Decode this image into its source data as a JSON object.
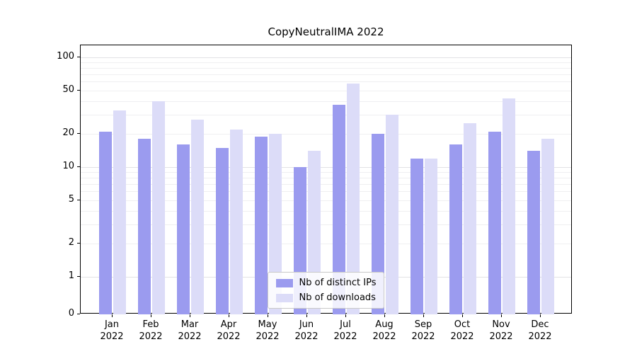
{
  "chart_data": {
    "type": "bar",
    "title": "CopyNeutralIMA 2022",
    "categories": [
      "Jan 2022",
      "Feb 2022",
      "Mar 2022",
      "Apr 2022",
      "May 2022",
      "Jun 2022",
      "Jul 2022",
      "Aug 2022",
      "Sep 2022",
      "Oct 2022",
      "Nov 2022",
      "Dec 2022"
    ],
    "x_tick_line1": [
      "Jan",
      "Feb",
      "Mar",
      "Apr",
      "May",
      "Jun",
      "Jul",
      "Aug",
      "Sep",
      "Oct",
      "Nov",
      "Dec"
    ],
    "x_tick_line2": "2022",
    "series": [
      {
        "name": "Nb of distinct IPs",
        "color": "#9b9bef",
        "values": [
          21,
          18,
          16,
          15,
          19,
          10,
          37,
          20,
          12,
          16,
          21,
          14
        ]
      },
      {
        "name": "Nb of downloads",
        "color": "#dcdcf8",
        "values": [
          33,
          40,
          27,
          22,
          20,
          14,
          58,
          30,
          12,
          25,
          42,
          18
        ]
      }
    ],
    "yscale": "symlog",
    "yticks": [
      0,
      1,
      2,
      5,
      10,
      20,
      50,
      100
    ],
    "ylim": [
      0,
      135
    ],
    "grid": true,
    "grid_minor_values": [
      2,
      3,
      4,
      5,
      6,
      7,
      8,
      9,
      20,
      30,
      40,
      50,
      60,
      70,
      80,
      90
    ],
    "grid_major_values": [
      1,
      10,
      100
    ],
    "legend_position": "lower center",
    "xlabel": "",
    "ylabel": ""
  },
  "colors": {
    "distinct_ips_bar": "#9b9bef",
    "downloads_bar": "#dcdcf8",
    "grid_minor": "#efeff1",
    "grid_major": "#e2e2e5",
    "axis": "#000000"
  }
}
